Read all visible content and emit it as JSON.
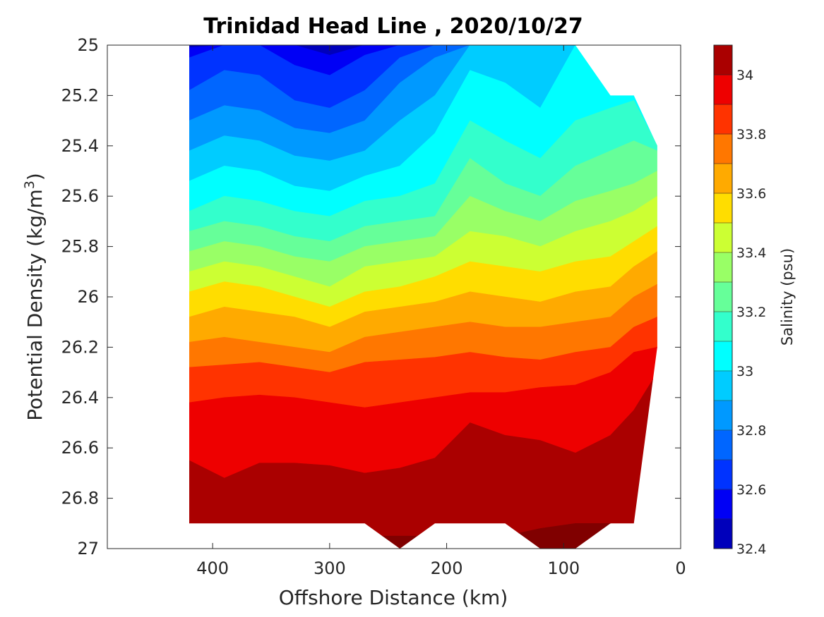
{
  "chart_data": {
    "type": "contour",
    "title": "Trinidad Head Line , 2020/10/27",
    "xlabel": "Offshore Distance (km)",
    "ylabel_main": "Potential Density (kg/m",
    "ylabel_sup": "3",
    "ylabel_close": ")",
    "colorbar_label": "Salinity (psu)",
    "x_reversed": true,
    "y_reversed": true,
    "xlim": [
      490,
      0
    ],
    "ylim": [
      25,
      27
    ],
    "xticks": [
      "400",
      "300",
      "200",
      "100",
      "0"
    ],
    "yticks": [
      "25",
      "25.2",
      "25.4",
      "25.6",
      "25.8",
      "26",
      "26.2",
      "26.4",
      "26.6",
      "26.8",
      "27"
    ],
    "colorbar_ticks": [
      "34",
      "33.8",
      "33.6",
      "33.4",
      "33.2",
      "33",
      "32.8",
      "32.6",
      "32.4"
    ],
    "colorbar_range": [
      32.4,
      34.1
    ],
    "contour_levels": [
      32.4,
      32.5,
      32.6,
      32.7,
      32.8,
      32.9,
      33.0,
      33.1,
      33.2,
      33.3,
      33.4,
      33.5,
      33.6,
      33.7,
      33.8,
      33.9,
      34.0,
      34.1
    ],
    "colormap": [
      "#000080",
      "#0000bb",
      "#0000f5",
      "#0033ff",
      "#0066ff",
      "#0099ff",
      "#00ccff",
      "#00ffff",
      "#33ffcc",
      "#66ff99",
      "#99ff66",
      "#ccff33",
      "#ffdd00",
      "#ffaa00",
      "#ff7700",
      "#ff3300",
      "#ee0000",
      "#aa0000",
      "#800000"
    ],
    "station_x": [
      420,
      390,
      360,
      330,
      300,
      270,
      240,
      210,
      180,
      150,
      120,
      90,
      60,
      40,
      20
    ],
    "data_bottom": [
      26.9,
      26.9,
      26.9,
      26.9,
      26.9,
      26.9,
      27.0,
      26.9,
      26.9,
      26.9,
      27.0,
      27.0,
      26.9,
      26.9,
      26.2
    ],
    "data_top": [
      25.0,
      25.0,
      25.0,
      25.0,
      25.0,
      25.0,
      25.0,
      25.0,
      25.0,
      25.0,
      25.0,
      25.0,
      25.2,
      25.2,
      25.4
    ],
    "isopycnal_boundaries": [
      {
        "level": 32.5,
        "y": [
          25.01,
          25.0,
          25.0,
          25.0,
          25.04,
          25.0,
          25.0,
          25.0,
          25.0,
          25.0,
          25.0,
          25.0,
          25.0,
          25.0,
          25.0
        ]
      },
      {
        "level": 32.6,
        "y": [
          25.05,
          25.0,
          25.0,
          25.08,
          25.12,
          25.04,
          25.0,
          25.0,
          25.0,
          25.0,
          25.0,
          25.0,
          25.0,
          25.0,
          25.0
        ]
      },
      {
        "level": 32.7,
        "y": [
          25.18,
          25.1,
          25.12,
          25.22,
          25.25,
          25.18,
          25.05,
          25.0,
          25.0,
          25.0,
          25.0,
          25.0,
          25.0,
          25.0,
          25.0
        ]
      },
      {
        "level": 32.8,
        "y": [
          25.3,
          25.24,
          25.26,
          25.33,
          25.35,
          25.3,
          25.15,
          25.05,
          25.0,
          25.0,
          25.0,
          25.0,
          25.0,
          25.0,
          25.0
        ]
      },
      {
        "level": 32.9,
        "y": [
          25.42,
          25.36,
          25.38,
          25.44,
          25.46,
          25.42,
          25.3,
          25.2,
          25.0,
          25.0,
          25.0,
          25.0,
          25.0,
          25.0,
          25.0
        ]
      },
      {
        "level": 33.0,
        "y": [
          25.54,
          25.48,
          25.5,
          25.56,
          25.58,
          25.52,
          25.48,
          25.35,
          25.1,
          25.15,
          25.25,
          25.0,
          25.0,
          25.0,
          25.0
        ]
      },
      {
        "level": 33.1,
        "y": [
          25.66,
          25.6,
          25.62,
          25.66,
          25.68,
          25.62,
          25.6,
          25.55,
          25.3,
          25.38,
          25.45,
          25.3,
          25.25,
          25.22,
          25.4
        ]
      },
      {
        "level": 33.2,
        "y": [
          25.74,
          25.7,
          25.72,
          25.76,
          25.78,
          25.72,
          25.7,
          25.68,
          25.45,
          25.55,
          25.6,
          25.48,
          25.42,
          25.38,
          25.42
        ]
      },
      {
        "level": 33.3,
        "y": [
          25.82,
          25.78,
          25.8,
          25.84,
          25.86,
          25.8,
          25.78,
          25.76,
          25.6,
          25.66,
          25.7,
          25.62,
          25.58,
          25.55,
          25.5
        ]
      },
      {
        "level": 33.4,
        "y": [
          25.9,
          25.86,
          25.88,
          25.92,
          25.96,
          25.88,
          25.86,
          25.84,
          25.74,
          25.76,
          25.8,
          25.74,
          25.7,
          25.66,
          25.6
        ]
      },
      {
        "level": 33.5,
        "y": [
          25.98,
          25.94,
          25.96,
          26.0,
          26.04,
          25.98,
          25.96,
          25.92,
          25.86,
          25.88,
          25.9,
          25.86,
          25.84,
          25.78,
          25.72
        ]
      },
      {
        "level": 33.6,
        "y": [
          26.08,
          26.04,
          26.06,
          26.08,
          26.12,
          26.06,
          26.04,
          26.02,
          25.98,
          26.0,
          26.02,
          25.98,
          25.96,
          25.88,
          25.82
        ]
      },
      {
        "level": 33.7,
        "y": [
          26.18,
          26.16,
          26.18,
          26.2,
          26.22,
          26.16,
          26.14,
          26.12,
          26.1,
          26.12,
          26.12,
          26.1,
          26.08,
          26.0,
          25.95
        ]
      },
      {
        "level": 33.8,
        "y": [
          26.28,
          26.27,
          26.26,
          26.28,
          26.3,
          26.26,
          26.25,
          26.24,
          26.22,
          26.24,
          26.25,
          26.22,
          26.2,
          26.12,
          26.08
        ]
      },
      {
        "level": 33.9,
        "y": [
          26.42,
          26.4,
          26.39,
          26.4,
          26.42,
          26.44,
          26.42,
          26.4,
          26.38,
          26.38,
          26.36,
          26.35,
          26.3,
          26.22,
          26.2
        ]
      },
      {
        "level": 34.0,
        "y": [
          26.65,
          26.72,
          26.66,
          26.66,
          26.67,
          26.7,
          26.68,
          26.64,
          26.5,
          26.55,
          26.57,
          26.62,
          26.55,
          26.45,
          26.3
        ]
      },
      {
        "level": 34.1,
        "y": [
          26.95,
          26.95,
          26.95,
          26.95,
          26.95,
          26.95,
          26.95,
          26.95,
          26.95,
          26.95,
          26.92,
          26.9,
          26.9,
          26.95,
          26.95
        ]
      }
    ]
  }
}
